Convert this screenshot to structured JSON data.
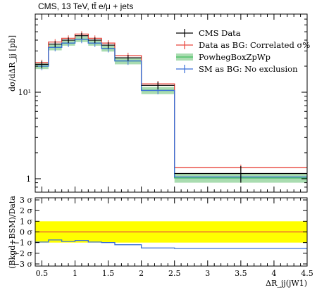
{
  "chart_data": {
    "type": "line",
    "title": "CMS, 13 TeV, tt̄ e/μ + jets",
    "xlabel": "ΔR_jj(jW1)",
    "ylabel": "dσ/dΔR_jj [pb]",
    "ratio_ylabel": "(Bkgd+BSM)/Data",
    "xlim": [
      0.4,
      4.5
    ],
    "ylim": [
      0.7,
      80
    ],
    "yscale": "log",
    "x_ticks": [
      0.5,
      1,
      1.5,
      2,
      2.5,
      3,
      3.5,
      4,
      4.5
    ],
    "x_tick_labels": [
      "0.5",
      "1",
      "1.5",
      "2",
      "2.5",
      "3",
      "3.5",
      "4",
      "4.5"
    ],
    "y_tick_labels": [
      "1",
      "10¹"
    ],
    "ratio_ticks": [
      3,
      2,
      1,
      0,
      -1,
      -2,
      -3
    ],
    "ratio_tick_labels": [
      "3 σ",
      "2 σ",
      "1 σ",
      "0 σ",
      "−1 σ",
      "−2 σ",
      "−3 σ"
    ],
    "bin_edges": [
      0.4,
      0.6,
      0.8,
      1.0,
      1.2,
      1.4,
      1.6,
      2.0,
      2.5,
      4.5
    ],
    "series": [
      {
        "name": "CMS Data",
        "color": "#000000",
        "style": "points",
        "values": [
          21,
          36,
          40,
          45,
          40,
          35,
          25,
          12,
          1.15
        ],
        "errors": [
          2.0,
          3.0,
          3.0,
          3.5,
          3.0,
          3.0,
          2.0,
          1.2,
          0.25
        ]
      },
      {
        "name": "Data as BG: Correlated σ%",
        "color": "#e8453c",
        "style": "step",
        "values": [
          22,
          38,
          42,
          47,
          42,
          37,
          26.5,
          12.5,
          1.35
        ]
      },
      {
        "name": "PowhegBoxZpWp",
        "color": "#3dbd5b",
        "band_color": "#a9dcb0",
        "style": "band",
        "values": [
          20,
          33,
          37,
          41,
          37,
          32,
          23,
          10.5,
          1.02
        ],
        "band_low": [
          18.5,
          30.5,
          34.5,
          38,
          34.5,
          29.5,
          21,
          9.5,
          0.9
        ],
        "band_high": [
          21.5,
          35.5,
          39.5,
          44,
          39.5,
          34.5,
          25,
          11.5,
          1.14
        ]
      },
      {
        "name": "SM as BG: No exclusion",
        "color": "#3a6fd8",
        "style": "step",
        "values": [
          20,
          33,
          37,
          41,
          37,
          32,
          23,
          10.5,
          1.05
        ]
      }
    ],
    "ratio": {
      "band": [
        -1,
        1
      ],
      "band_color": "#ffff00",
      "reference": 0,
      "reference_color": "#e8453c",
      "series_values": [
        -0.95,
        -0.75,
        -0.9,
        -0.8,
        -0.95,
        -1.0,
        -1.2,
        -1.5,
        -1.55
      ],
      "series_color": "#3a6fd8"
    },
    "legend_position": "top-right"
  }
}
